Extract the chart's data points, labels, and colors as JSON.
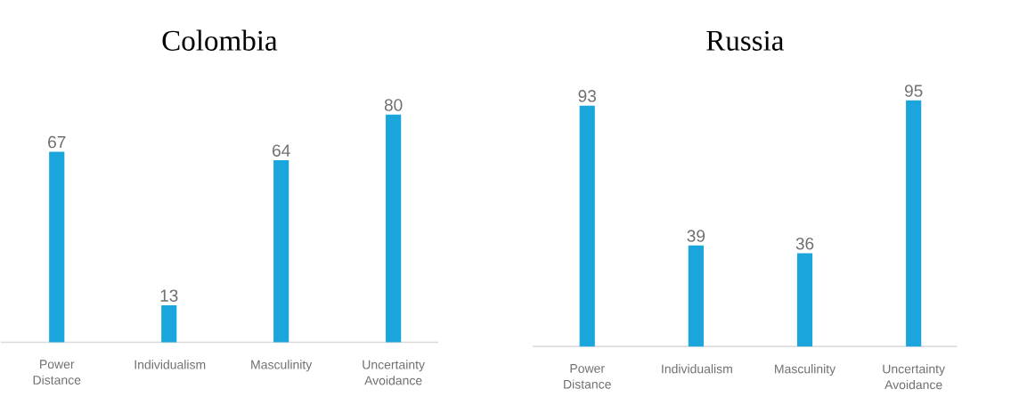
{
  "chart_data": [
    {
      "type": "bar",
      "title": "Colombia",
      "categories": [
        "Power Distance",
        "Individualism",
        "Masculinity",
        "Uncertainty Avoidance"
      ],
      "values": [
        67,
        13,
        64,
        80
      ],
      "color": "#1ba5dd",
      "data_labels": true,
      "tick_labels": "x"
    },
    {
      "type": "bar",
      "title": "Russia",
      "categories": [
        "Power Distance",
        "Individualism",
        "Masculinity",
        "Uncertainty Avoidance"
      ],
      "values": [
        93,
        39,
        36,
        95
      ],
      "color": "#1ba5dd",
      "data_labels": true,
      "tick_labels": "x"
    }
  ]
}
